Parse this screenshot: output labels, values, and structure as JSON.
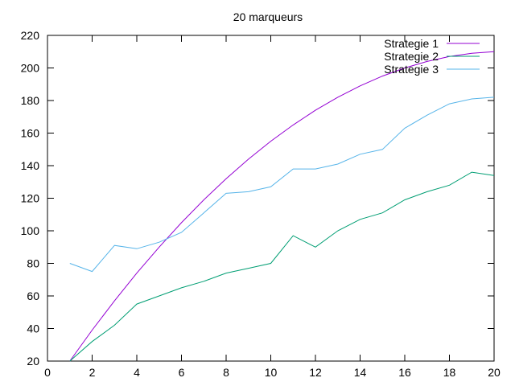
{
  "chart_data": {
    "type": "line",
    "title": "20 marqueurs",
    "xlim": [
      0,
      20
    ],
    "ylim": [
      20,
      220
    ],
    "xticks": [
      0,
      2,
      4,
      6,
      8,
      10,
      12,
      14,
      16,
      18,
      20
    ],
    "yticks": [
      20,
      40,
      60,
      80,
      100,
      120,
      140,
      160,
      180,
      200,
      220
    ],
    "grid": false,
    "legend_position": "top-right",
    "x": [
      1,
      2,
      3,
      4,
      5,
      6,
      7,
      8,
      9,
      10,
      11,
      12,
      13,
      14,
      15,
      16,
      17,
      18,
      19,
      20
    ],
    "series": [
      {
        "name": "Strategie 1",
        "color": "#9400d3",
        "values": [
          20,
          39,
          57,
          74,
          90,
          105,
          119,
          132,
          144,
          155,
          165,
          174,
          182,
          189,
          195,
          200,
          204,
          207,
          209,
          210
        ]
      },
      {
        "name": "Strategie 2",
        "color": "#009e73",
        "values": [
          20,
          32,
          42,
          55,
          60,
          65,
          69,
          74,
          77,
          80,
          97,
          90,
          100,
          107,
          111,
          119,
          124,
          128,
          136,
          134
        ]
      },
      {
        "name": "Strategie 3",
        "color": "#56b4e9",
        "values": [
          80,
          75,
          91,
          89,
          93,
          99,
          111,
          123,
          124,
          127,
          138,
          138,
          141,
          147,
          150,
          163,
          171,
          178,
          181,
          182
        ]
      }
    ]
  }
}
